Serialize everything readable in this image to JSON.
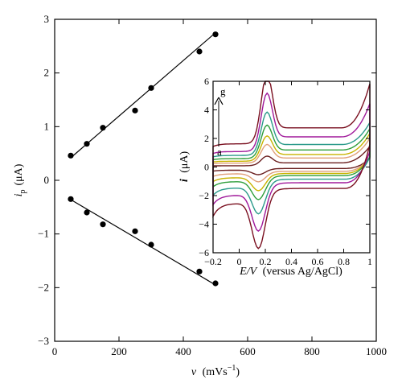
{
  "chart_data": [
    {
      "type": "scatter",
      "xlabel_symbol": "ν",
      "xlabel_unit": "(mVs",
      "xlabel_sup": "−1",
      "xlabel_close": ")",
      "ylabel_symbol": "i",
      "ylabel_sub": "p",
      "ylabel_unit": "(μA)",
      "xlim": [
        0,
        1000
      ],
      "ylim": [
        -3,
        3
      ],
      "xticks": [
        "0",
        "200",
        "400",
        "600",
        "800",
        "1000"
      ],
      "yticks": [
        "3",
        "2",
        "1",
        "0",
        "−1",
        "−2",
        "−3"
      ],
      "series": [
        {
          "x": [
            50,
            100,
            150,
            250,
            300,
            450,
            500
          ],
          "y": [
            0.46,
            0.68,
            0.98,
            1.3,
            1.72,
            2.4,
            2.72
          ],
          "fit": [
            [
              50,
              0.42
            ],
            [
              500,
              2.75
            ]
          ]
        },
        {
          "x": [
            50,
            100,
            150,
            250,
            300,
            450,
            500
          ],
          "y": [
            -0.35,
            -0.6,
            -0.82,
            -0.95,
            -1.2,
            -1.7,
            -1.92
          ],
          "fit": [
            [
              50,
              -0.36
            ],
            [
              500,
              -1.95
            ]
          ]
        }
      ]
    },
    {
      "type": "line",
      "subtype": "cyclic voltammogram",
      "xlabel_symbol": "E/V",
      "xlabel_text": "(versus Ag/AgCl)",
      "ylabel_symbol": "i",
      "ylabel_unit": "(μA)",
      "xlim": [
        -0.2,
        1.0
      ],
      "ylim": [
        -6,
        6
      ],
      "xticks": [
        "−0.2",
        "0",
        "0.2",
        "0.4",
        "0.6",
        "0.8",
        "1"
      ],
      "yticks": [
        "6",
        "4",
        "2",
        "0",
        "−2",
        "−4",
        "−6"
      ],
      "arrow_start_label": "a",
      "arrow_end_label": "g",
      "curves": [
        {
          "color": "#6b1f1f",
          "peak_ox": 0.55,
          "base_ox": 0.1,
          "peak_red": -0.45,
          "base_red": -0.1,
          "end": 1.3
        },
        {
          "color": "#e0a07a",
          "peak_ox": 1.1,
          "base_ox": 0.3,
          "peak_red": -0.8,
          "base_red": -0.3,
          "end": 1.8
        },
        {
          "color": "#c8b400",
          "peak_ox": 1.5,
          "base_ox": 0.45,
          "peak_red": -1.3,
          "base_red": -0.45,
          "end": 2.1
        },
        {
          "color": "#2e9e3a",
          "peak_ox": 2.0,
          "base_ox": 0.65,
          "peak_red": -1.8,
          "base_red": -0.6,
          "end": 2.4
        },
        {
          "color": "#2a9a8a",
          "peak_ox": 2.6,
          "base_ox": 0.9,
          "peak_red": -2.6,
          "base_red": -0.85,
          "end": 2.8
        },
        {
          "color": "#a0199a",
          "peak_ox": 3.5,
          "base_ox": 1.2,
          "peak_red": -3.6,
          "base_red": -1.1,
          "end": 4.0
        },
        {
          "color": "#7a1020",
          "peak_ox": 4.3,
          "base_ox": 1.8,
          "peak_red": -4.5,
          "base_red": -1.5,
          "end": 5.6
        }
      ]
    }
  ]
}
